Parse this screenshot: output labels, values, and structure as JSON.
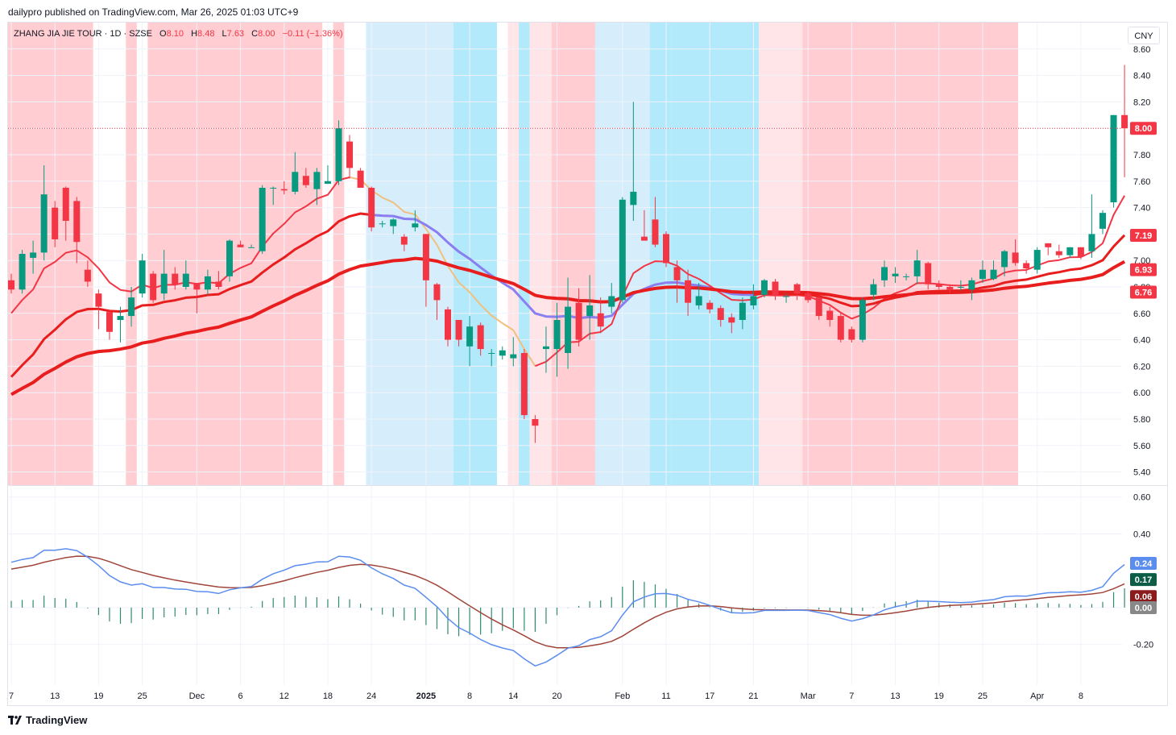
{
  "header": {
    "publisher": "dailypro published on TradingView.com, Mar 26, 2025 01:03 UTC+9"
  },
  "legend": {
    "symbol": "ZHANG JIA JIE TOUR · 1D · SZSE",
    "o_label": "O",
    "o": "8.10",
    "h_label": "H",
    "h": "8.48",
    "l_label": "L",
    "l": "7.63",
    "c_label": "C",
    "c": "8.00",
    "change": "−0.11 (−1.36%)"
  },
  "currency": "CNY",
  "footer": {
    "brand": "TradingView"
  },
  "colors": {
    "up": "#089981",
    "down": "#f23645",
    "bg_red": "#ffcdd2",
    "bg_light_red": "#ffe5e7",
    "bg_light_blue": "#d6eefb",
    "bg_cyan": "#b2e9fb",
    "ema_fast": "#f23645",
    "ema_slow": "#e81e1e",
    "ema_neutral": "#f0c080",
    "ema_purple": "#8a7ef0",
    "macd": "#5b8def",
    "signal": "#a0453a",
    "hist": "#2f8a6e"
  },
  "chart_data": [
    {
      "type": "candlestick",
      "price_axis_ticks": [
        "8.60",
        "8.40",
        "8.20",
        "8.00",
        "7.80",
        "7.60",
        "7.40",
        "7.20",
        "7.00",
        "6.80",
        "6.60",
        "6.40",
        "6.20",
        "6.00",
        "5.80",
        "5.60",
        "5.40"
      ],
      "ylim": [
        5.3,
        8.8
      ],
      "x_axis_labels": [
        {
          "label": "7",
          "day": 0
        },
        {
          "label": "13",
          "day": 4
        },
        {
          "label": "19",
          "day": 8
        },
        {
          "label": "25",
          "day": 12
        },
        {
          "label": "Dec",
          "day": 17
        },
        {
          "label": "6",
          "day": 21
        },
        {
          "label": "12",
          "day": 25
        },
        {
          "label": "18",
          "day": 29
        },
        {
          "label": "24",
          "day": 33
        },
        {
          "label": "2025",
          "day": 38
        },
        {
          "label": "8",
          "day": 42
        },
        {
          "label": "14",
          "day": 46
        },
        {
          "label": "20",
          "day": 50
        },
        {
          "label": "Feb",
          "day": 56
        },
        {
          "label": "11",
          "day": 60
        },
        {
          "label": "17",
          "day": 64
        },
        {
          "label": "21",
          "day": 68
        },
        {
          "label": "Mar",
          "day": 73
        },
        {
          "label": "7",
          "day": 77
        },
        {
          "label": "13",
          "day": 81
        },
        {
          "label": "19",
          "day": 85
        },
        {
          "label": "25",
          "day": 89
        },
        {
          "label": "Apr",
          "day": 94
        },
        {
          "label": "8",
          "day": 98
        }
      ],
      "candles": [
        [
          6.85,
          6.78,
          6.9,
          6.75
        ],
        [
          6.78,
          7.05,
          7.08,
          6.75
        ],
        [
          7.02,
          7.06,
          7.15,
          6.9
        ],
        [
          7.06,
          7.5,
          7.72,
          7.0
        ],
        [
          7.4,
          7.16,
          7.45,
          7.1
        ],
        [
          7.55,
          7.3,
          7.56,
          7.15
        ],
        [
          7.45,
          7.14,
          7.48,
          6.98
        ],
        [
          6.93,
          6.84,
          7.0,
          6.8
        ],
        [
          6.75,
          6.65,
          6.78,
          6.48
        ],
        [
          6.61,
          6.46,
          6.63,
          6.4
        ],
        [
          6.55,
          6.58,
          6.65,
          6.38
        ],
        [
          6.58,
          6.72,
          6.8,
          6.5
        ],
        [
          6.75,
          7.0,
          7.05,
          6.72
        ],
        [
          6.9,
          6.7,
          6.92,
          6.68
        ],
        [
          6.75,
          6.9,
          7.08,
          6.7
        ],
        [
          6.9,
          6.82,
          6.95,
          6.78
        ],
        [
          6.8,
          6.9,
          7.0,
          6.78
        ],
        [
          6.83,
          6.78,
          6.8,
          6.6
        ],
        [
          6.78,
          6.88,
          6.93,
          6.74
        ],
        [
          6.84,
          6.8,
          6.92,
          6.78
        ],
        [
          6.88,
          7.15,
          7.16,
          6.84
        ],
        [
          7.12,
          7.1,
          7.15,
          7.1
        ],
        [
          7.1,
          7.1,
          7.12,
          7.1
        ],
        [
          7.07,
          7.55,
          7.57,
          7.05
        ],
        [
          7.55,
          7.55,
          7.56,
          7.42
        ],
        [
          7.54,
          7.53,
          7.6,
          7.5
        ],
        [
          7.52,
          7.67,
          7.82,
          7.5
        ],
        [
          7.64,
          7.57,
          7.7,
          7.55
        ],
        [
          7.54,
          7.67,
          7.7,
          7.42
        ],
        [
          7.58,
          7.6,
          7.72,
          7.58
        ],
        [
          7.6,
          8.0,
          8.06,
          7.57
        ],
        [
          7.9,
          7.7,
          7.95,
          7.62
        ],
        [
          7.68,
          7.55,
          7.7,
          7.55
        ],
        [
          7.55,
          7.25,
          7.56,
          7.22
        ],
        [
          7.28,
          7.28,
          7.3,
          7.25
        ],
        [
          7.26,
          7.31,
          7.32,
          7.2
        ],
        [
          7.18,
          7.12,
          7.2,
          7.07
        ],
        [
          7.25,
          7.28,
          7.38,
          7.22
        ],
        [
          7.2,
          6.85,
          7.2,
          6.65
        ],
        [
          6.82,
          6.7,
          6.83,
          6.55
        ],
        [
          6.63,
          6.4,
          6.65,
          6.35
        ],
        [
          6.55,
          6.4,
          6.55,
          6.35
        ],
        [
          6.35,
          6.5,
          6.58,
          6.2
        ],
        [
          6.51,
          6.33,
          6.53,
          6.28
        ],
        [
          6.3,
          6.3,
          6.33,
          6.2
        ],
        [
          6.28,
          6.32,
          6.35,
          6.25
        ],
        [
          6.26,
          6.29,
          6.42,
          6.2
        ],
        [
          6.3,
          5.83,
          6.33,
          5.8
        ],
        [
          5.8,
          5.75,
          5.83,
          5.62
        ],
        [
          6.33,
          6.35,
          6.5,
          6.15
        ],
        [
          6.33,
          6.55,
          6.68,
          6.12
        ],
        [
          6.3,
          6.65,
          6.87,
          6.18
        ],
        [
          6.68,
          6.4,
          6.79,
          6.35
        ],
        [
          6.58,
          6.66,
          6.89,
          6.4
        ],
        [
          6.6,
          6.5,
          6.72,
          6.45
        ],
        [
          6.65,
          6.73,
          6.83,
          6.6
        ],
        [
          6.7,
          7.46,
          7.48,
          6.68
        ],
        [
          7.42,
          7.52,
          8.2,
          7.3
        ],
        [
          7.18,
          7.15,
          7.38,
          7.15
        ],
        [
          7.31,
          7.12,
          7.48,
          7.1
        ],
        [
          7.2,
          6.98,
          7.22,
          6.95
        ],
        [
          6.95,
          6.85,
          7.0,
          6.68
        ],
        [
          6.85,
          6.68,
          6.93,
          6.58
        ],
        [
          6.66,
          6.73,
          6.83,
          6.63
        ],
        [
          6.68,
          6.63,
          6.7,
          6.6
        ],
        [
          6.64,
          6.55,
          6.66,
          6.5
        ],
        [
          6.57,
          6.53,
          6.6,
          6.45
        ],
        [
          6.55,
          6.68,
          6.72,
          6.48
        ],
        [
          6.66,
          6.73,
          6.82,
          6.63
        ],
        [
          6.74,
          6.85,
          6.86,
          6.72
        ],
        [
          6.84,
          6.73,
          6.86,
          6.7
        ],
        [
          6.73,
          6.73,
          6.75,
          6.68
        ],
        [
          6.82,
          6.75,
          6.83,
          6.7
        ],
        [
          6.75,
          6.7,
          6.77,
          6.68
        ],
        [
          6.72,
          6.58,
          6.73,
          6.55
        ],
        [
          6.62,
          6.55,
          6.65,
          6.5
        ],
        [
          6.58,
          6.4,
          6.6,
          6.38
        ],
        [
          6.48,
          6.4,
          6.5,
          6.38
        ],
        [
          6.4,
          6.7,
          6.72,
          6.38
        ],
        [
          6.74,
          6.82,
          6.86,
          6.7
        ],
        [
          6.85,
          6.95,
          7.0,
          6.8
        ],
        [
          6.88,
          6.9,
          6.95,
          6.83
        ],
        [
          6.88,
          6.88,
          6.9,
          6.85
        ],
        [
          6.88,
          7.0,
          7.08,
          6.82
        ],
        [
          6.98,
          6.82,
          6.99,
          6.78
        ],
        [
          6.82,
          6.8,
          6.85,
          6.78
        ],
        [
          6.8,
          6.78,
          6.82,
          6.75
        ],
        [
          6.8,
          6.8,
          6.85,
          6.77
        ],
        [
          6.78,
          6.85,
          6.87,
          6.7
        ],
        [
          6.86,
          6.93,
          7.0,
          6.83
        ],
        [
          6.86,
          6.93,
          7.0,
          6.85
        ],
        [
          6.95,
          7.07,
          7.08,
          6.88
        ],
        [
          7.06,
          6.98,
          7.16,
          6.96
        ],
        [
          6.98,
          6.94,
          7.0,
          6.9
        ],
        [
          6.93,
          7.08,
          7.1,
          6.9
        ],
        [
          7.13,
          7.1,
          7.13,
          7.04
        ],
        [
          7.07,
          7.04,
          7.12,
          7.02
        ],
        [
          7.04,
          7.1,
          7.1,
          7.02
        ],
        [
          7.1,
          7.03,
          7.1,
          7.01
        ],
        [
          7.07,
          7.2,
          7.5,
          7.02
        ],
        [
          7.24,
          7.36,
          7.38,
          7.2
        ],
        [
          7.44,
          8.1,
          8.1,
          7.4
        ],
        [
          8.1,
          8.0,
          8.48,
          7.63
        ]
      ],
      "current_price": "8.00",
      "ema_labels": [
        "7.19",
        "6.93",
        "6.76"
      ],
      "background_bands": [
        {
          "from": 0,
          "to": 7,
          "color": "red"
        },
        {
          "from": 11,
          "to": 11,
          "color": "red"
        },
        {
          "from": 13,
          "to": 28,
          "color": "red"
        },
        {
          "from": 30,
          "to": 30,
          "color": "red"
        },
        {
          "from": 33,
          "to": 40,
          "color": "light_blue"
        },
        {
          "from": 41,
          "to": 44,
          "color": "cyan"
        },
        {
          "from": 46,
          "to": 46,
          "color": "light_red"
        },
        {
          "from": 47,
          "to": 47,
          "color": "cyan"
        },
        {
          "from": 48,
          "to": 49,
          "color": "light_red"
        },
        {
          "from": 50,
          "to": 53,
          "color": "red"
        },
        {
          "from": 54,
          "to": 58,
          "color": "light_blue"
        },
        {
          "from": 59,
          "to": 60,
          "color": "cyan"
        },
        {
          "from": 61,
          "to": 68,
          "color": "cyan"
        },
        {
          "from": 69,
          "to": 72,
          "color": "light_red"
        },
        {
          "from": 73,
          "to": 92,
          "color": "red"
        }
      ]
    },
    {
      "type": "macd",
      "axis_ticks": [
        "0.60",
        "0.40",
        "-0.20"
      ],
      "ylim": [
        -0.42,
        0.66
      ],
      "value_labels": [
        "0.24",
        "0.17",
        "0.06",
        "0.00"
      ]
    }
  ]
}
